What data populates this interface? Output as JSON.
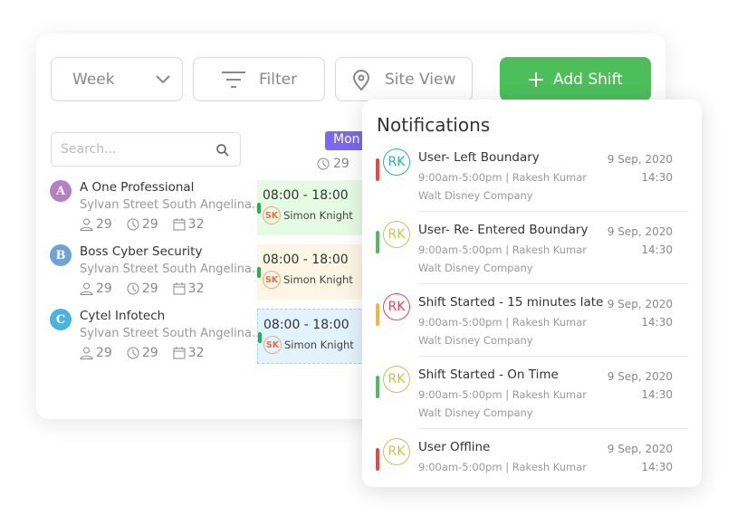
{
  "toolbar": {
    "week_label": "Week",
    "filter_label": "Filter",
    "site_view_label": "Site View",
    "add_shift_label": "Add Shift",
    "add_shift_color": "#4cbe5a"
  },
  "search": {
    "placeholder": "Search..."
  },
  "day": {
    "label": "Mon",
    "count": "29",
    "color": "#7b68ee"
  },
  "sites": [
    {
      "initial": "A",
      "name": "A One Professional",
      "address": "Sylvan Street South Angelina..",
      "users": "29",
      "hours": "29",
      "days": "32",
      "color": "#b47fc4"
    },
    {
      "initial": "B",
      "name": "Boss Cyber Security",
      "address": "Sylvan Street South Angelina..",
      "users": "29",
      "hours": "29",
      "days": "32",
      "color": "#6fa3d6"
    },
    {
      "initial": "C",
      "name": "Cytel Infotech",
      "address": "Sylvan Street South Angelina..",
      "users": "29",
      "hours": "29",
      "days": "32",
      "color": "#4ab3e0"
    }
  ],
  "shifts": [
    {
      "time": "08:00 - 18:00",
      "initials": "SK",
      "person": "Simon Knight",
      "bg": "#e6fbe3"
    },
    {
      "time": "08:00 - 18:00",
      "initials": "SK",
      "person": "Simon Knight",
      "bg": "#fdf6e4"
    },
    {
      "time": "08:00 - 18:00",
      "initials": "SK",
      "person": "Simon Knight",
      "bg": "#e3f3fc"
    }
  ],
  "notifications": {
    "title": "Notifications",
    "items": [
      {
        "initials": "RK",
        "title": "User- Left Boundary",
        "line1": "9:00am-5:00pm | Rakesh Kumar",
        "line2": "Walt Disney Company",
        "date": "9 Sep, 2020",
        "time": "14:30",
        "status_color": "#f0453a",
        "avatar_color": "#2bb3a0"
      },
      {
        "initials": "RK",
        "title": "User- Re- Entered Boundary",
        "line1": "9:00am-5:00pm | Rakesh Kumar",
        "line2": "Walt Disney Company",
        "date": "9 Sep, 2020",
        "time": "14:30",
        "status_color": "#4cbe5a",
        "avatar_color": "#b9c960"
      },
      {
        "initials": "RK",
        "title": "Shift Started - 15 minutes late",
        "line1": "9:00am-5:00pm | Rakesh Kumar",
        "line2": "Walt Disney Company",
        "date": "9 Sep, 2020",
        "time": "14:30",
        "status_color": "#f5b73b",
        "avatar_color": "#e5484d"
      },
      {
        "initials": "RK",
        "title": "Shift Started - On Time",
        "line1": "9:00am-5:00pm | Rakesh Kumar",
        "line2": "Walt Disney Company",
        "date": "9 Sep, 2020",
        "time": "14:30",
        "status_color": "#4cbe5a",
        "avatar_color": "#b9c960"
      },
      {
        "initials": "RK",
        "title": "User Offline",
        "line1": "9:00am-5:00pm | Rakesh Kumar",
        "date": "9 Sep, 2020",
        "time": "14:30",
        "status_color": "#f0453a",
        "avatar_color": "#b9c960"
      }
    ]
  }
}
